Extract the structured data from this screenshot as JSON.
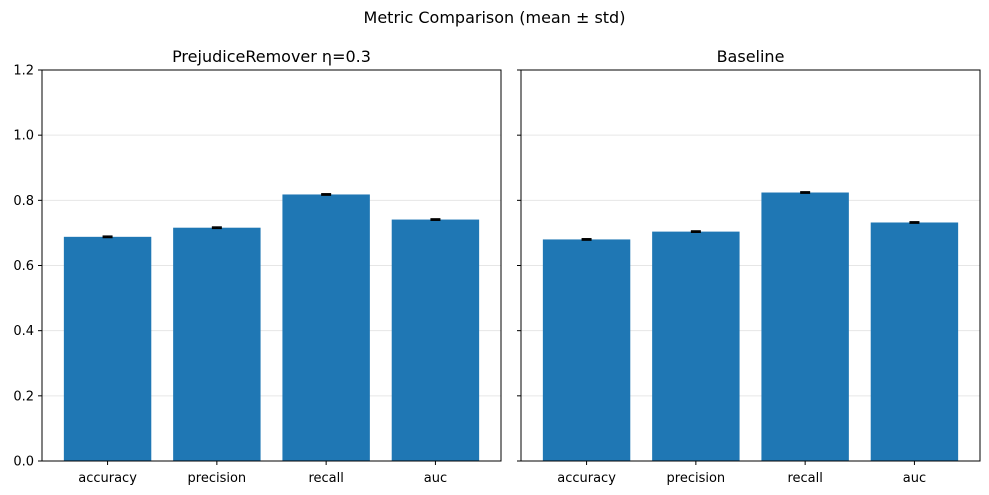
{
  "chart_data": {
    "type": "bar",
    "title": "Metric Comparison (mean ± std)",
    "ylim": [
      0,
      1.2
    ],
    "yticks": [
      "0.0",
      "0.2",
      "0.4",
      "0.6",
      "0.8",
      "1.0",
      "1.2"
    ],
    "ytick_values": [
      0.0,
      0.2,
      0.4,
      0.6,
      0.8,
      1.0,
      1.2
    ],
    "grid": "y",
    "bar_color": "#1f77b4",
    "error_color": "#000000",
    "panels": [
      {
        "title": "PrejudiceRemover η=0.3",
        "categories": [
          "accuracy",
          "precision",
          "recall",
          "auc"
        ],
        "values": [
          0.688,
          0.716,
          0.818,
          0.741
        ],
        "errors": [
          0.002,
          0.002,
          0.002,
          0.002
        ]
      },
      {
        "title": "Baseline",
        "categories": [
          "accuracy",
          "precision",
          "recall",
          "auc"
        ],
        "values": [
          0.68,
          0.704,
          0.824,
          0.732
        ],
        "errors": [
          0.002,
          0.002,
          0.002,
          0.002
        ]
      }
    ]
  }
}
